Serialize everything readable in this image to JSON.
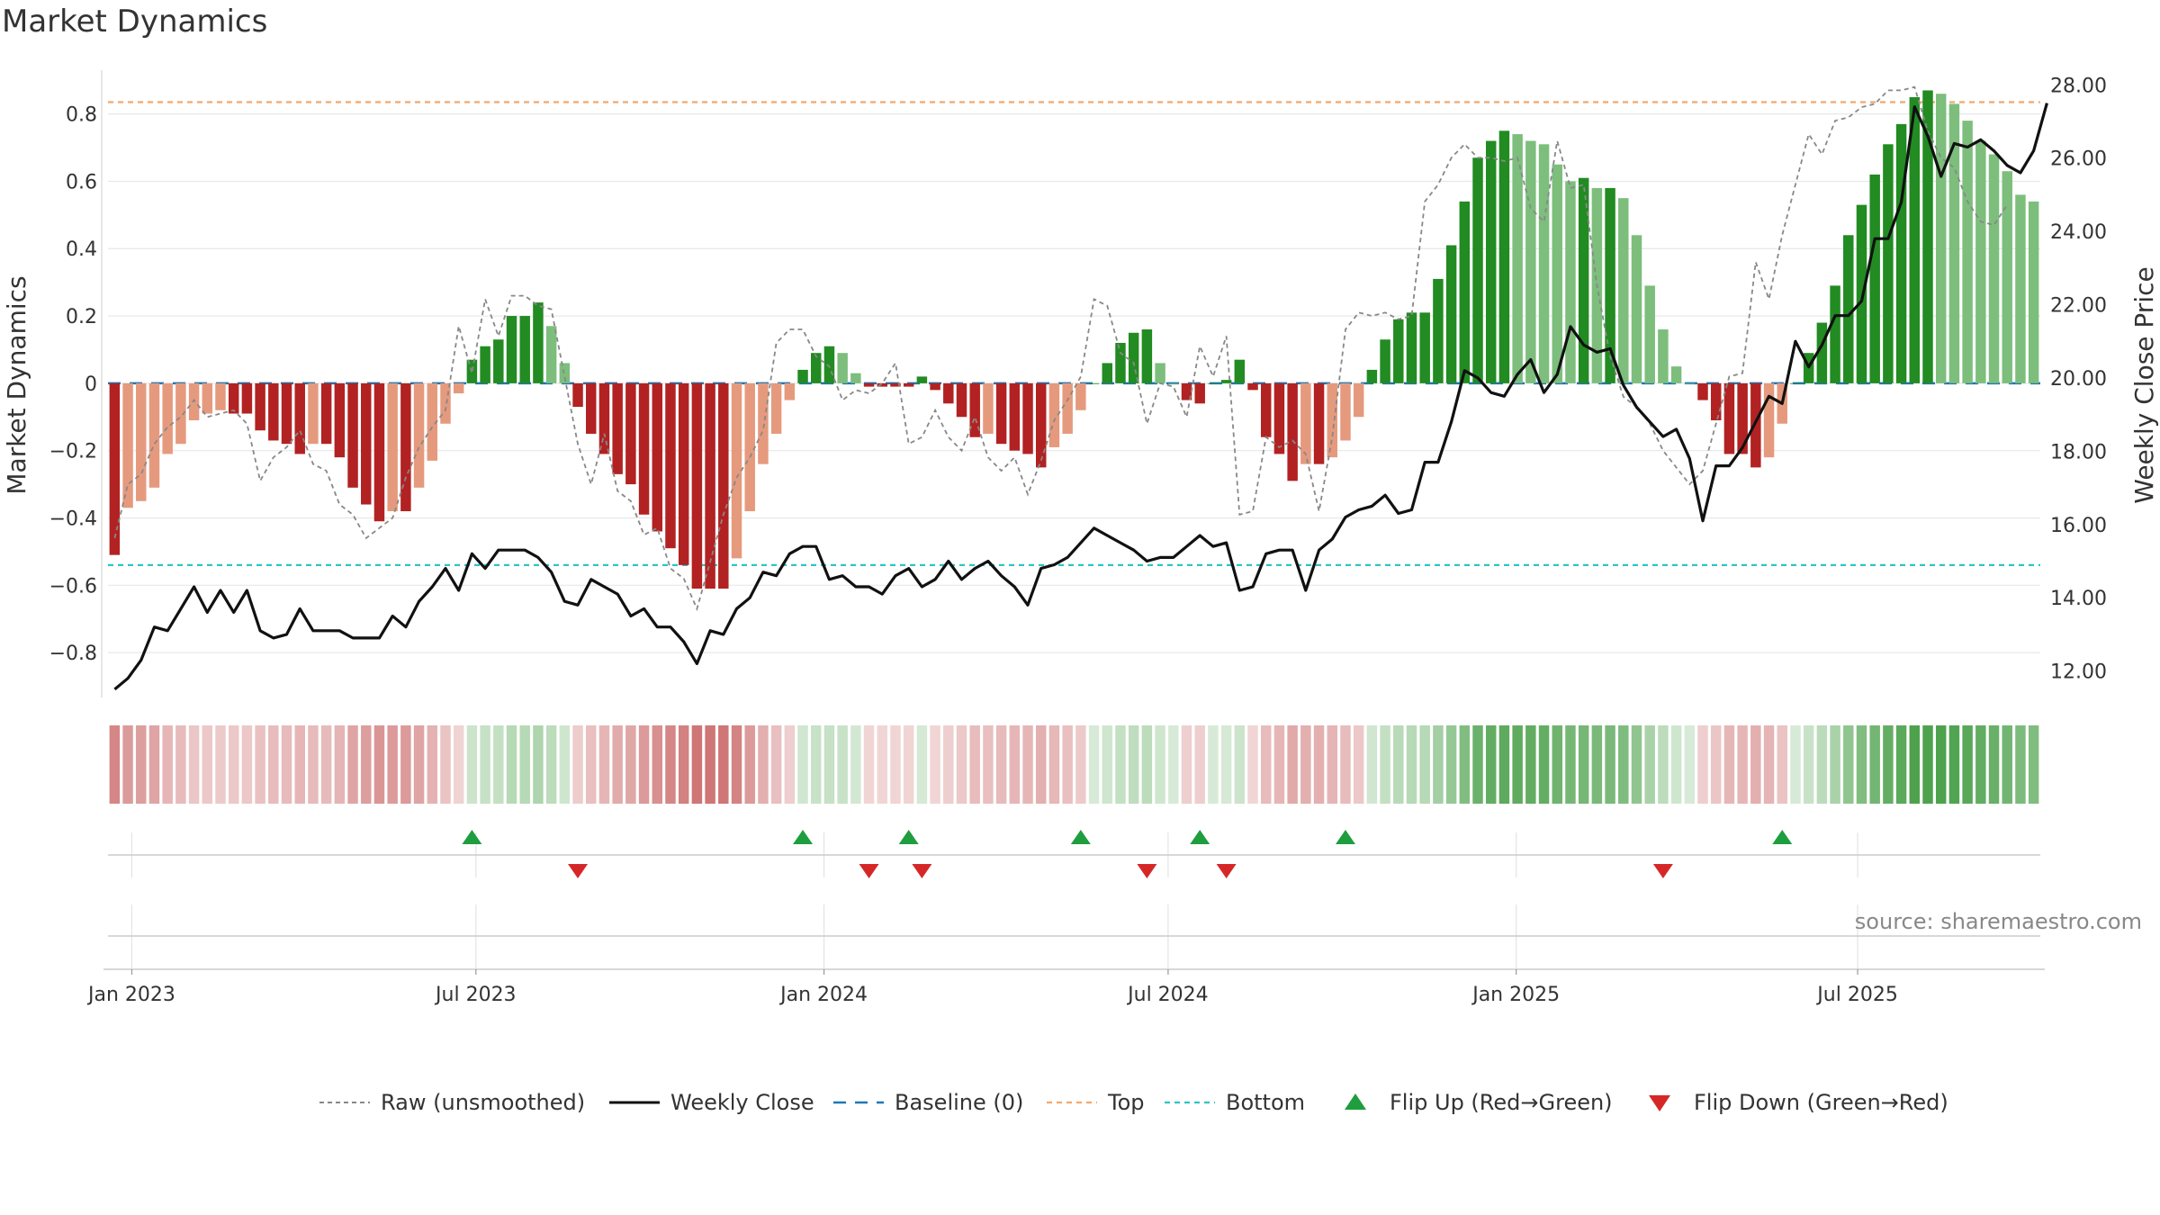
{
  "title": "Market Dynamics",
  "source": "source: sharemaestro.com",
  "colors": {
    "strong_pos": "#228B22",
    "weak_pos": "#7DBE7D",
    "strong_neg": "#B22222",
    "weak_neg": "#E59A7E",
    "raw": "#888888",
    "close": "#111111",
    "baseline": "#1F77B4",
    "top": "#F4A76B",
    "bottom": "#2EC4C4",
    "flip_up": "#1E9E3F",
    "flip_down": "#D62728"
  },
  "chart_data": {
    "type": "bar",
    "title": "Market Dynamics",
    "ylabel": "Market Dynamics",
    "y2label": "Weekly Close Price",
    "ylim": [
      -0.92,
      0.93
    ],
    "y2lim": [
      11.4,
      28.4
    ],
    "yticks": [
      0.8,
      0.6,
      0.4,
      0.2,
      0,
      -0.2,
      -0.4,
      -0.6,
      -0.8
    ],
    "ytick_labels": [
      "0.8",
      "0.6",
      "0.4",
      "0.2",
      "0",
      "−0.2",
      "−0.4",
      "−0.6",
      "−0.8"
    ],
    "y2ticks": [
      28,
      26,
      24,
      22,
      20,
      18,
      16,
      14,
      12
    ],
    "y2tick_labels": [
      "28.00",
      "26.00",
      "24.00",
      "22.00",
      "20.00",
      "18.00",
      "16.00",
      "14.00",
      "12.00"
    ],
    "x_start": "2022-12-23",
    "x_step_weeks": 1,
    "xticks": [
      {
        "label": "Jan 2023",
        "index": 1.3
      },
      {
        "label": "Jul 2023",
        "index": 27.3
      },
      {
        "label": "Jan 2024",
        "index": 53.6
      },
      {
        "label": "Jul 2024",
        "index": 79.6
      },
      {
        "label": "Jan 2025",
        "index": 105.9
      },
      {
        "label": "Jul 2025",
        "index": 131.7
      }
    ],
    "top_line": 0.835,
    "bottom_line": -0.54,
    "baseline": 0,
    "series": [
      {
        "name": "Market Dynamics (smoothed)",
        "values": [
          -0.51,
          -0.37,
          -0.35,
          -0.31,
          -0.21,
          -0.18,
          -0.11,
          -0.09,
          -0.08,
          -0.09,
          -0.09,
          -0.14,
          -0.17,
          -0.18,
          -0.21,
          -0.18,
          -0.18,
          -0.22,
          -0.31,
          -0.36,
          -0.41,
          -0.38,
          -0.38,
          -0.31,
          -0.23,
          -0.12,
          -0.03,
          0.07,
          0.11,
          0.13,
          0.2,
          0.2,
          0.24,
          0.17,
          0.06,
          -0.07,
          -0.15,
          -0.21,
          -0.27,
          -0.3,
          -0.39,
          -0.44,
          -0.49,
          -0.54,
          -0.61,
          -0.61,
          -0.61,
          -0.52,
          -0.38,
          -0.24,
          -0.15,
          -0.05,
          0.04,
          0.09,
          0.11,
          0.09,
          0.03,
          -0.01,
          -0.01,
          -0.01,
          -0.01,
          0.02,
          -0.02,
          -0.06,
          -0.1,
          -0.16,
          -0.15,
          -0.18,
          -0.2,
          -0.21,
          -0.25,
          -0.19,
          -0.15,
          -0.08,
          0.0,
          0.06,
          0.12,
          0.15,
          0.16,
          0.06,
          0.0,
          -0.05,
          -0.06,
          0.0,
          0.01,
          0.07,
          -0.02,
          -0.16,
          -0.21,
          -0.29,
          -0.24,
          -0.24,
          -0.22,
          -0.17,
          -0.1,
          0.04,
          0.13,
          0.19,
          0.21,
          0.21,
          0.31,
          0.41,
          0.54,
          0.67,
          0.72,
          0.75,
          0.74,
          0.72,
          0.71,
          0.65,
          0.6,
          0.61,
          0.58,
          0.58,
          0.55,
          0.44,
          0.29,
          0.16,
          0.05,
          0.0,
          -0.05,
          -0.11,
          -0.21,
          -0.21,
          -0.25,
          -0.22,
          -0.12,
          0.0,
          0.09,
          0.18,
          0.29,
          0.44,
          0.53,
          0.62,
          0.71,
          0.77,
          0.85,
          0.87,
          0.86,
          0.83,
          0.78,
          0.72,
          0.68,
          0.63,
          0.56,
          0.54
        ]
      },
      {
        "name": "Raw (unsmoothed)",
        "values": [
          -0.46,
          -0.3,
          -0.27,
          -0.18,
          -0.13,
          -0.1,
          -0.05,
          -0.1,
          -0.09,
          -0.08,
          -0.12,
          -0.29,
          -0.22,
          -0.19,
          -0.14,
          -0.24,
          -0.26,
          -0.36,
          -0.39,
          -0.46,
          -0.43,
          -0.4,
          -0.28,
          -0.19,
          -0.13,
          -0.08,
          0.17,
          0.03,
          0.25,
          0.14,
          0.26,
          0.26,
          0.23,
          0.22,
          0.02,
          -0.18,
          -0.3,
          -0.15,
          -0.32,
          -0.35,
          -0.45,
          -0.43,
          -0.55,
          -0.58,
          -0.67,
          -0.53,
          -0.39,
          -0.28,
          -0.22,
          -0.14,
          0.12,
          0.16,
          0.16,
          0.08,
          0.05,
          -0.05,
          -0.02,
          -0.03,
          0.0,
          0.06,
          -0.18,
          -0.16,
          -0.08,
          -0.16,
          -0.2,
          -0.1,
          -0.22,
          -0.26,
          -0.22,
          -0.33,
          -0.23,
          -0.11,
          -0.05,
          0.02,
          0.25,
          0.23,
          0.09,
          0.06,
          -0.12,
          0.0,
          -0.01,
          -0.1,
          0.11,
          0.02,
          0.14,
          -0.39,
          -0.38,
          -0.16,
          -0.19,
          -0.17,
          -0.21,
          -0.38,
          -0.16,
          0.16,
          0.21,
          0.2,
          0.21,
          0.19,
          0.2,
          0.54,
          0.59,
          0.67,
          0.71,
          0.67,
          0.67,
          0.66,
          0.67,
          0.52,
          0.48,
          0.72,
          0.58,
          0.59,
          0.29,
          0.08,
          -0.04,
          -0.07,
          -0.12,
          -0.2,
          -0.25,
          -0.3,
          -0.26,
          -0.12,
          0.02,
          0.03,
          0.36,
          0.25,
          0.44,
          0.59,
          0.74,
          0.68,
          0.78,
          0.79,
          0.82,
          0.83,
          0.87,
          0.87,
          0.88,
          0.75,
          0.67,
          0.64,
          0.54,
          0.48,
          0.47,
          0.53
        ]
      },
      {
        "name": "Weekly Close",
        "axis": "right",
        "values": [
          11.5,
          11.8,
          12.3,
          13.2,
          13.1,
          13.7,
          14.3,
          13.6,
          14.2,
          13.6,
          14.2,
          13.1,
          12.9,
          13.0,
          13.7,
          13.1,
          13.1,
          13.1,
          12.9,
          12.9,
          12.9,
          13.5,
          13.2,
          13.9,
          14.3,
          14.8,
          14.2,
          15.2,
          14.8,
          15.3,
          15.3,
          15.3,
          15.1,
          14.7,
          13.9,
          13.8,
          14.5,
          14.3,
          14.1,
          13.5,
          13.7,
          13.2,
          13.2,
          12.8,
          12.2,
          13.1,
          13.0,
          13.7,
          14.0,
          14.7,
          14.6,
          15.2,
          15.4,
          15.4,
          14.5,
          14.6,
          14.3,
          14.3,
          14.1,
          14.6,
          14.8,
          14.3,
          14.5,
          15.0,
          14.5,
          14.8,
          15.0,
          14.6,
          14.3,
          13.8,
          14.8,
          14.9,
          15.1,
          15.5,
          15.9,
          15.7,
          15.5,
          15.3,
          15.0,
          15.1,
          15.1,
          15.4,
          15.7,
          15.4,
          15.5,
          14.2,
          14.3,
          15.2,
          15.3,
          15.3,
          14.2,
          15.3,
          15.6,
          16.2,
          16.4,
          16.5,
          16.8,
          16.3,
          16.4,
          17.7,
          17.7,
          18.8,
          20.2,
          20.0,
          19.6,
          19.5,
          20.1,
          20.5,
          19.6,
          20.1,
          21.4,
          20.9,
          20.7,
          20.8,
          19.8,
          19.2,
          18.8,
          18.4,
          18.6,
          17.8,
          16.1,
          17.6,
          17.6,
          18.1,
          18.8,
          19.5,
          19.3,
          21.0,
          20.3,
          20.9,
          21.7,
          21.7,
          22.1,
          23.8,
          23.8,
          24.8,
          27.4,
          26.6,
          25.5,
          26.4,
          26.3,
          26.5,
          26.2,
          25.8,
          25.6,
          26.2,
          27.5
        ]
      }
    ],
    "flip_up_indices": [
      27,
      52,
      60,
      73,
      82,
      93,
      126
    ],
    "flip_down_indices": [
      35,
      57,
      61,
      78,
      84,
      117
    ],
    "legend": [
      {
        "label": "Raw (unsmoothed)",
        "style": "dashed-gray"
      },
      {
        "label": "Weekly Close",
        "style": "solid-black"
      },
      {
        "label": "Baseline (0)",
        "style": "dashed-blue"
      },
      {
        "label": "Top",
        "style": "dashed-orange"
      },
      {
        "label": "Bottom",
        "style": "dashed-cyan"
      },
      {
        "label": "Flip Up (Red→Green)",
        "style": "triangle-up"
      },
      {
        "label": "Flip Down (Green→Red)",
        "style": "triangle-down"
      }
    ],
    "legend_position": "bottom-center"
  }
}
